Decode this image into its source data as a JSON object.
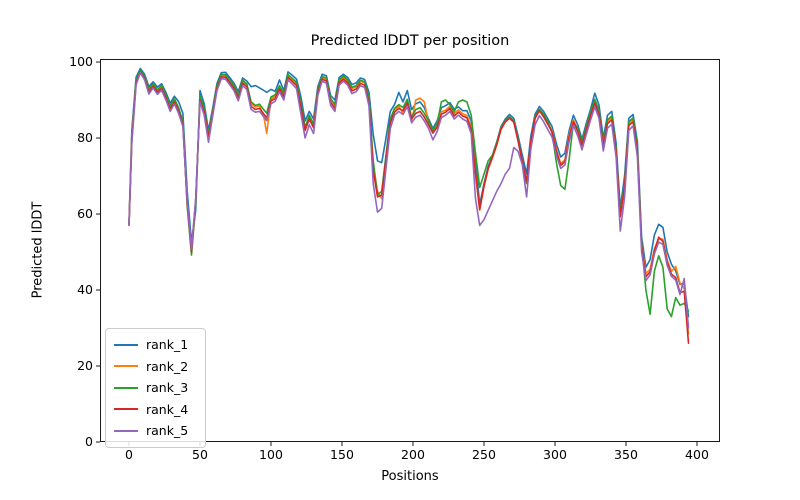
{
  "figure": {
    "title": "Predicted lDDT per position",
    "xlabel": "Positions",
    "ylabel": "Predicted lDDT",
    "background": "#ffffff"
  },
  "chart_data": {
    "type": "line",
    "title": "Predicted lDDT per position",
    "xlabel": "Positions",
    "ylabel": "Predicted lDDT",
    "xlim": [
      -20.4,
      416.2
    ],
    "ylim": [
      0,
      100.8
    ],
    "x_ticks": [
      0,
      50,
      100,
      150,
      200,
      250,
      300,
      350,
      400
    ],
    "y_ticks": [
      0,
      20,
      40,
      60,
      80,
      100
    ],
    "grid": false,
    "legend_position": "lower left",
    "line_width": 1.6,
    "x": [
      0,
      2,
      5,
      8,
      11,
      14,
      17,
      20,
      23,
      26,
      29,
      32,
      35,
      38,
      41,
      44,
      47,
      50,
      53,
      56,
      59,
      62,
      65,
      68,
      71,
      74,
      77,
      80,
      83,
      86,
      89,
      92,
      95,
      97,
      100,
      103,
      106,
      109,
      112,
      115,
      118,
      121,
      124,
      127,
      130,
      133,
      136,
      139,
      142,
      145,
      148,
      151,
      154,
      157,
      160,
      163,
      166,
      169,
      172,
      175,
      178,
      181,
      184,
      187,
      190,
      193,
      196,
      199,
      202,
      205,
      208,
      211,
      214,
      217,
      220,
      223,
      226,
      229,
      232,
      235,
      238,
      241,
      244,
      247,
      250,
      253,
      256,
      259,
      262,
      265,
      268,
      271,
      274,
      277,
      280,
      283,
      286,
      289,
      292,
      295,
      298,
      301,
      304,
      307,
      310,
      313,
      316,
      319,
      322,
      325,
      328,
      331,
      334,
      337,
      340,
      343,
      346,
      349,
      352,
      355,
      358,
      361,
      364,
      367,
      370,
      373,
      376,
      379,
      382,
      385,
      388,
      391,
      394
    ],
    "series": [
      {
        "name": "rank_1",
        "color": "#1f77b4",
        "values": [
          57.5,
          82,
          96,
          98.3,
          96.8,
          93.5,
          94.8,
          93.4,
          94.3,
          92,
          89.2,
          91,
          89.5,
          86.5,
          66,
          52.5,
          61,
          92.5,
          89,
          82,
          88,
          94.4,
          97.2,
          97.3,
          95.9,
          94.4,
          92.2,
          95.8,
          95,
          93.5,
          93.8,
          93.2,
          92.5,
          92,
          92.8,
          92.3,
          95.3,
          92.5,
          97.4,
          96.5,
          95.5,
          91,
          84.5,
          87,
          85,
          93.5,
          96.8,
          96.4,
          91.2,
          90,
          95.9,
          96.8,
          95.9,
          94.1,
          94.5,
          95.8,
          95.4,
          92,
          81,
          74,
          73.5,
          80,
          87,
          88.8,
          92,
          89.5,
          92.5,
          87.5,
          89,
          89.5,
          88,
          85,
          82.5,
          84.5,
          88,
          88.5,
          89.3,
          87.6,
          88.2,
          87.2,
          87.2,
          84.5,
          74,
          62.5,
          68,
          72.5,
          75.5,
          79,
          83,
          85,
          86.2,
          85.2,
          80.5,
          75.5,
          70.5,
          80.5,
          86.3,
          88.3,
          87,
          85,
          83,
          78.5,
          75,
          76,
          82,
          86,
          83.5,
          79.7,
          83.8,
          87.5,
          91.8,
          88.7,
          80,
          86,
          87,
          78.7,
          61.5,
          70,
          85.2,
          86.2,
          79,
          54,
          46,
          48,
          54.5,
          57.3,
          56.5,
          50,
          46.8,
          45,
          41.5,
          41.8,
          33
        ]
      },
      {
        "name": "rank_2",
        "color": "#ff7f0e",
        "values": [
          57.3,
          80.5,
          95,
          97.6,
          96,
          92.6,
          94.1,
          92.4,
          93.6,
          91.1,
          88,
          90.1,
          87.6,
          84,
          62.5,
          50.3,
          63.5,
          90.5,
          87.5,
          80.7,
          87.1,
          93.5,
          96.5,
          96.4,
          95,
          93.5,
          91,
          94.9,
          94,
          89,
          88.2,
          88.4,
          85.5,
          81.2,
          90.3,
          91,
          93.4,
          91.3,
          96.4,
          95.4,
          94.3,
          88.8,
          82,
          85.5,
          83.2,
          92.5,
          96,
          95.5,
          90,
          88.4,
          95,
          96,
          95,
          93,
          93.5,
          95,
          94.5,
          90,
          73,
          66,
          64,
          74,
          84.3,
          87.4,
          88.4,
          86.5,
          89.9,
          84.5,
          90,
          90.5,
          89.5,
          84,
          81.5,
          83.4,
          86.9,
          87.3,
          88.4,
          86.4,
          87.4,
          86.4,
          85.9,
          82.9,
          71,
          61,
          67,
          71.8,
          74.8,
          78.2,
          82.2,
          84.2,
          85.3,
          84.3,
          79.3,
          73.8,
          68.3,
          79.3,
          85.3,
          87.3,
          85.9,
          83.9,
          81.9,
          77,
          73.3,
          74.3,
          80.9,
          84.8,
          82.2,
          78.4,
          82.5,
          86.3,
          89.8,
          86.9,
          78.4,
          84.4,
          85.4,
          76.9,
          59.9,
          67.9,
          83.9,
          84.9,
          76.9,
          51.9,
          44.4,
          45.4,
          50.9,
          53.4,
          53.4,
          47.9,
          44.9,
          46.2,
          41.9,
          40.4,
          28.5
        ]
      },
      {
        "name": "rank_3",
        "color": "#2ca02c",
        "values": [
          57.2,
          80,
          95.2,
          97.8,
          96.3,
          92.9,
          94.3,
          92.7,
          93.8,
          91.3,
          88.4,
          90.3,
          87.9,
          84.4,
          62,
          49.2,
          62.5,
          91,
          88,
          81,
          87.4,
          93.8,
          96.7,
          96.7,
          95.3,
          93.8,
          91.4,
          95.2,
          94.3,
          89.5,
          88.6,
          88.9,
          87.4,
          86.5,
          90.8,
          91.4,
          93.8,
          91.7,
          96.7,
          95.7,
          94.7,
          89.3,
          82.8,
          86,
          83.7,
          92.8,
          96.2,
          95.8,
          90.4,
          88.9,
          95.3,
          96.3,
          95.3,
          93.4,
          93.8,
          95.2,
          94.8,
          90.5,
          74,
          65,
          66,
          75.5,
          85,
          87.8,
          88.8,
          88,
          90.2,
          85.5,
          87.5,
          88,
          86.5,
          84.5,
          82,
          83.8,
          89.5,
          90,
          88.8,
          86.9,
          89.5,
          90,
          89.5,
          86,
          76,
          67,
          70.5,
          74,
          75.5,
          78.8,
          82.7,
          84.6,
          85.6,
          84.6,
          79.6,
          73.5,
          68,
          79,
          85.6,
          87.6,
          86.3,
          84.3,
          81.3,
          73.5,
          67.5,
          66.5,
          74.5,
          84,
          82.7,
          78.9,
          83,
          86.8,
          90.2,
          87.3,
          78.8,
          84.8,
          85.8,
          77.3,
          60.3,
          68.3,
          84.3,
          85.3,
          77.3,
          52.3,
          40,
          33.6,
          45,
          49,
          46,
          35,
          33,
          38,
          36,
          36.5,
          34.5
        ]
      },
      {
        "name": "rank_4",
        "color": "#d62728",
        "values": [
          57,
          79,
          94.5,
          97.4,
          95.7,
          92.2,
          93.6,
          92.1,
          93.1,
          90.6,
          87.6,
          89.6,
          87.1,
          83.5,
          62.8,
          50,
          63.8,
          90,
          87,
          80.2,
          86.6,
          93.1,
          96.1,
          96,
          94.6,
          93,
          90.5,
          94.4,
          93.5,
          88.3,
          87.5,
          87.8,
          86.3,
          85.3,
          89.8,
          90.4,
          92.9,
          90.7,
          95.9,
          94.9,
          93.8,
          88.3,
          82,
          85,
          82.7,
          92,
          95.5,
          95,
          89.4,
          87.8,
          94.5,
          95.5,
          94.5,
          92.4,
          92.9,
          94.4,
          93.9,
          89.3,
          71.5,
          64.5,
          65,
          74.5,
          84,
          86.8,
          87.8,
          87.2,
          89.2,
          85,
          86.5,
          87,
          85.5,
          83.5,
          81.3,
          82.8,
          86.3,
          86.8,
          87.8,
          85.8,
          86.8,
          85.8,
          85.3,
          82.3,
          70.5,
          61.2,
          67.5,
          72,
          75,
          78.3,
          82.4,
          84.3,
          85.2,
          84.2,
          79.2,
          73.8,
          68.5,
          79.2,
          85.2,
          87.2,
          85.6,
          83.6,
          81.6,
          76.6,
          72.8,
          73.8,
          80.3,
          84.3,
          81.8,
          78.1,
          82.1,
          85.9,
          89.2,
          86.3,
          77.8,
          83.8,
          84.8,
          76.3,
          59.3,
          67.3,
          83.3,
          84.3,
          76.3,
          51.3,
          43.5,
          44.8,
          50.3,
          53.9,
          52.8,
          47.3,
          44.2,
          43.3,
          39.3,
          39.7,
          26
        ]
      },
      {
        "name": "rank_5",
        "color": "#9467bd",
        "values": [
          57.1,
          78.5,
          94,
          97.2,
          95.3,
          91.6,
          93.2,
          91.5,
          92.6,
          90,
          87,
          89,
          86.4,
          83,
          63.5,
          50.8,
          64,
          89.5,
          86,
          78.9,
          86,
          92.5,
          95.6,
          95.5,
          94,
          92.4,
          89.8,
          93.8,
          92.8,
          87.5,
          86.8,
          87,
          85.5,
          84.6,
          89,
          89.7,
          92.2,
          90,
          95.3,
          94.2,
          93,
          86.5,
          80,
          83.5,
          81.2,
          91.2,
          95,
          94.4,
          88.6,
          87,
          93.9,
          95,
          93.9,
          91.7,
          92.2,
          93.8,
          93.3,
          88.4,
          68,
          60.5,
          61.5,
          72,
          82.5,
          86,
          87,
          86.2,
          88.3,
          84,
          85.5,
          86,
          84.5,
          82.5,
          79.5,
          81.7,
          85.4,
          86,
          87,
          85,
          86,
          85,
          84.4,
          81.2,
          64,
          57,
          58.5,
          61,
          63.5,
          66,
          68,
          70.5,
          72,
          77.5,
          76.5,
          73,
          64.5,
          77,
          83.5,
          85.9,
          84.3,
          82.2,
          80.2,
          75.4,
          72,
          72.9,
          79.2,
          83.3,
          80.6,
          76.9,
          80.9,
          84.7,
          88.2,
          85.2,
          76.6,
          82.6,
          83.6,
          75,
          55.5,
          64.5,
          82,
          83.2,
          75,
          50,
          42.5,
          44,
          49.5,
          52.6,
          52,
          46.5,
          43.6,
          42.6,
          38.8,
          43,
          30
        ]
      }
    ]
  }
}
